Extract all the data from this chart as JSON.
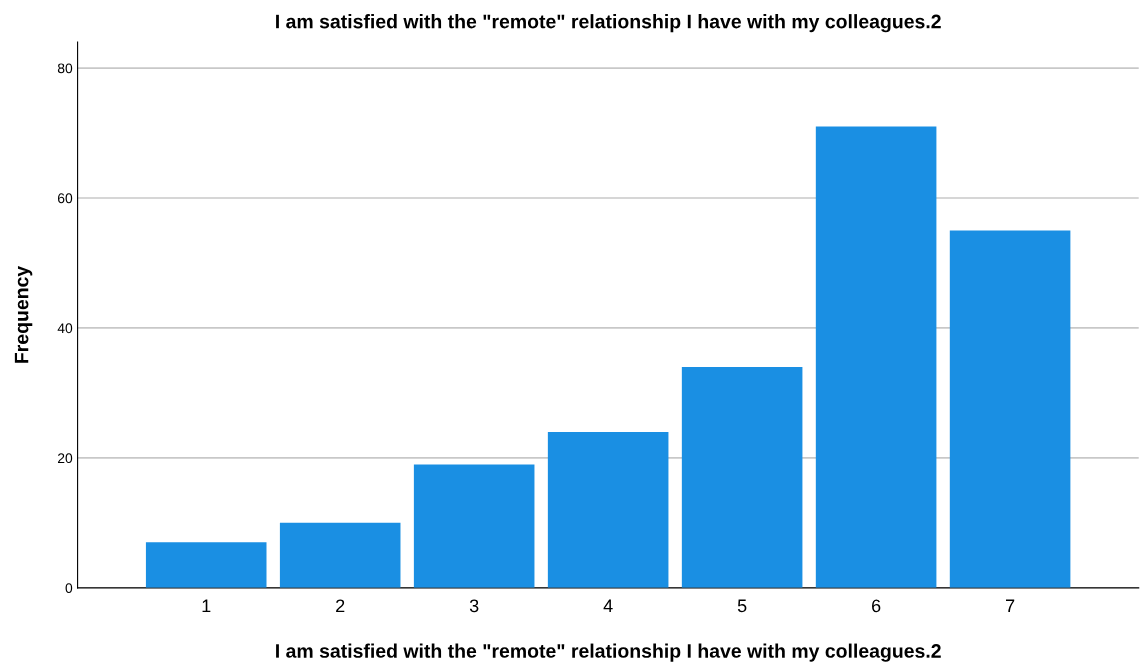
{
  "chart_data": {
    "type": "bar",
    "title": "I am satisfied with the \"remote\" relationship I have with my colleagues.2",
    "xlabel": "I am satisfied with the \"remote\" relationship I have with my colleagues.2",
    "ylabel": "Frequency",
    "categories": [
      "1",
      "2",
      "3",
      "4",
      "5",
      "6",
      "7"
    ],
    "values": [
      7,
      10,
      19,
      24,
      34,
      71,
      55
    ],
    "color": "#1a8fe3",
    "ylim": [
      0,
      84
    ],
    "yticks": [
      0,
      20,
      40,
      60,
      80
    ],
    "grid": "y"
  }
}
